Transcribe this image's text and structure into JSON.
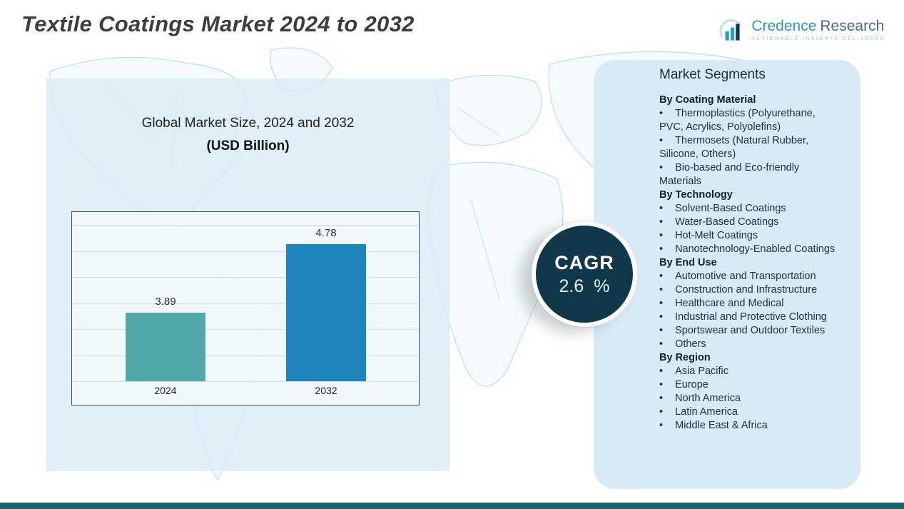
{
  "header": {
    "title": "Textile Coatings Market 2024 to 2032"
  },
  "logo": {
    "name_primary": "Credence",
    "name_secondary": "Research",
    "tagline": "Actionable Insights Delivered",
    "accent_color": "#2d9aad"
  },
  "chart_panel": {
    "title": "Global Market Size, 2024 and 2032",
    "subtitle": "(USD Billion)"
  },
  "chart_data": {
    "type": "bar",
    "title": "Global Market Size, 2024 and 2032 (USD Billion)",
    "categories": [
      "2024",
      "2032"
    ],
    "values": [
      3.89,
      4.78
    ],
    "value_labels": [
      "3.89",
      "4.78"
    ],
    "bar_colors": [
      "#4fa8a6",
      "#1e86bc"
    ],
    "xlabel": "",
    "ylabel": "",
    "units": "USD Billion",
    "ylim": [
      3.0,
      5.2
    ],
    "grid": true,
    "legend": false
  },
  "cagr": {
    "label": "CAGR",
    "value": "2.6 %"
  },
  "segments": {
    "title": "Market Segments",
    "groups": [
      {
        "heading": "By Coating Material",
        "items": [
          "Thermoplastics (Polyurethane, PVC, Acrylics, Polyolefins)",
          "Thermosets (Natural Rubber, Silicone, Others)",
          "Bio-based and Eco-friendly Materials"
        ]
      },
      {
        "heading": "By Technology",
        "items": [
          "Solvent-Based Coatings",
          "Water-Based Coatings",
          "Hot-Melt Coatings",
          "Nanotechnology-Enabled Coatings"
        ]
      },
      {
        "heading": "By End Use",
        "items": [
          "Automotive and Transportation",
          "Construction and Infrastructure",
          "Healthcare and Medical",
          "Industrial and Protective Clothing",
          "Sportswear and Outdoor Textiles",
          "Others"
        ]
      },
      {
        "heading": "By Region",
        "items": [
          "Asia Pacific",
          "Europe",
          "North America",
          "Latin America",
          "Middle East & Africa"
        ]
      }
    ]
  },
  "colors": {
    "panel_blue": "#d7eaf6",
    "circle_navy": "#11374b",
    "bottom_bar_teal": "#18646f",
    "map_outline": "#b8dfeb"
  }
}
